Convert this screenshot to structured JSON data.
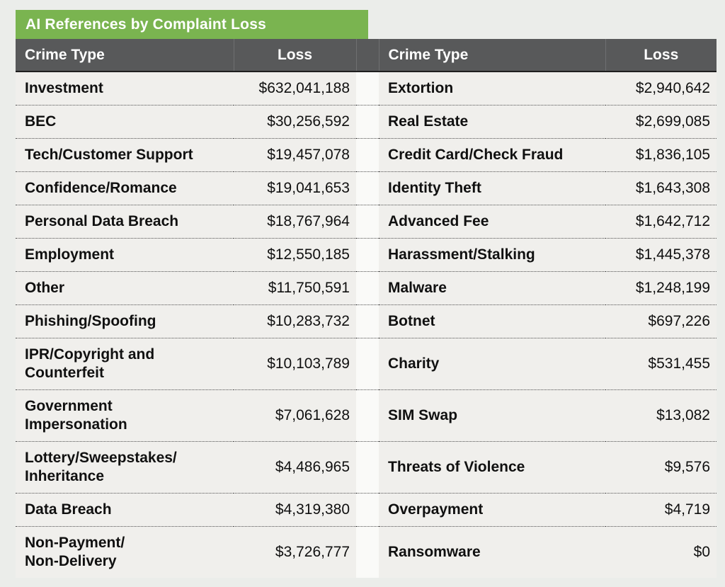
{
  "title": "AI References by Complaint Loss",
  "headers": {
    "crime_type": "Crime Type",
    "loss": "Loss"
  },
  "colors": {
    "title_bg": "#7ab450",
    "header_bg": "#58595a",
    "row_bg": "#f0efec",
    "gap_strip_bg": "#fafaf8",
    "page_bg": "#ebedea",
    "header_text": "#ffffff",
    "body_text": "#101010"
  },
  "rows": [
    {
      "left": {
        "crime": "Investment",
        "loss": "$632,041,188"
      },
      "right": {
        "crime": "Extortion",
        "loss": "$2,940,642"
      }
    },
    {
      "left": {
        "crime": "BEC",
        "loss": "$30,256,592"
      },
      "right": {
        "crime": "Real Estate",
        "loss": "$2,699,085"
      }
    },
    {
      "left": {
        "crime": "Tech/Customer Support",
        "loss": "$19,457,078"
      },
      "right": {
        "crime": "Credit Card/Check Fraud",
        "loss": "$1,836,105"
      }
    },
    {
      "left": {
        "crime": "Confidence/Romance",
        "loss": "$19,041,653"
      },
      "right": {
        "crime": "Identity Theft",
        "loss": "$1,643,308"
      }
    },
    {
      "left": {
        "crime": "Personal Data Breach",
        "loss": "$18,767,964"
      },
      "right": {
        "crime": "Advanced Fee",
        "loss": "$1,642,712"
      }
    },
    {
      "left": {
        "crime": "Employment",
        "loss": "$12,550,185"
      },
      "right": {
        "crime": "Harassment/Stalking",
        "loss": "$1,445,378"
      }
    },
    {
      "left": {
        "crime": "Other",
        "loss": "$11,750,591"
      },
      "right": {
        "crime": "Malware",
        "loss": "$1,248,199"
      }
    },
    {
      "left": {
        "crime": "Phishing/Spoofing",
        "loss": "$10,283,732"
      },
      "right": {
        "crime": "Botnet",
        "loss": "$697,226"
      }
    },
    {
      "left": {
        "crime": "IPR/Copyright and\nCounterfeit",
        "loss": "$10,103,789"
      },
      "right": {
        "crime": "Charity",
        "loss": "$531,455"
      }
    },
    {
      "left": {
        "crime": "Government\nImpersonation",
        "loss": "$7,061,628"
      },
      "right": {
        "crime": "SIM Swap",
        "loss": "$13,082"
      }
    },
    {
      "left": {
        "crime": "Lottery/Sweepstakes/\nInheritance",
        "loss": "$4,486,965"
      },
      "right": {
        "crime": "Threats of Violence",
        "loss": "$9,576"
      }
    },
    {
      "left": {
        "crime": "Data Breach",
        "loss": "$4,319,380"
      },
      "right": {
        "crime": "Overpayment",
        "loss": "$4,719"
      }
    },
    {
      "left": {
        "crime": "Non-Payment/\nNon-Delivery",
        "loss": "$3,726,777"
      },
      "right": {
        "crime": "Ransomware",
        "loss": "$0"
      }
    }
  ],
  "chart_data": {
    "type": "table",
    "title": "AI References by Complaint Loss",
    "columns": [
      "Crime Type",
      "Loss",
      "Crime Type",
      "Loss"
    ],
    "rows": [
      [
        "Investment",
        "$632,041,188",
        "Extortion",
        "$2,940,642"
      ],
      [
        "BEC",
        "$30,256,592",
        "Real Estate",
        "$2,699,085"
      ],
      [
        "Tech/Customer Support",
        "$19,457,078",
        "Credit Card/Check Fraud",
        "$1,836,105"
      ],
      [
        "Confidence/Romance",
        "$19,041,653",
        "Identity Theft",
        "$1,643,308"
      ],
      [
        "Personal Data Breach",
        "$18,767,964",
        "Advanced Fee",
        "$1,642,712"
      ],
      [
        "Employment",
        "$12,550,185",
        "Harassment/Stalking",
        "$1,445,378"
      ],
      [
        "Other",
        "$11,750,591",
        "Malware",
        "$1,248,199"
      ],
      [
        "Phishing/Spoofing",
        "$10,283,732",
        "Botnet",
        "$697,226"
      ],
      [
        "IPR/Copyright and Counterfeit",
        "$10,103,789",
        "Charity",
        "$531,455"
      ],
      [
        "Government Impersonation",
        "$7,061,628",
        "SIM Swap",
        "$13,082"
      ],
      [
        "Lottery/Sweepstakes/Inheritance",
        "$4,486,965",
        "Threats of Violence",
        "$9,576"
      ],
      [
        "Data Breach",
        "$4,319,380",
        "Overpayment",
        "$4,719"
      ],
      [
        "Non-Payment/Non-Delivery",
        "$3,726,777",
        "Ransomware",
        "$0"
      ]
    ]
  }
}
